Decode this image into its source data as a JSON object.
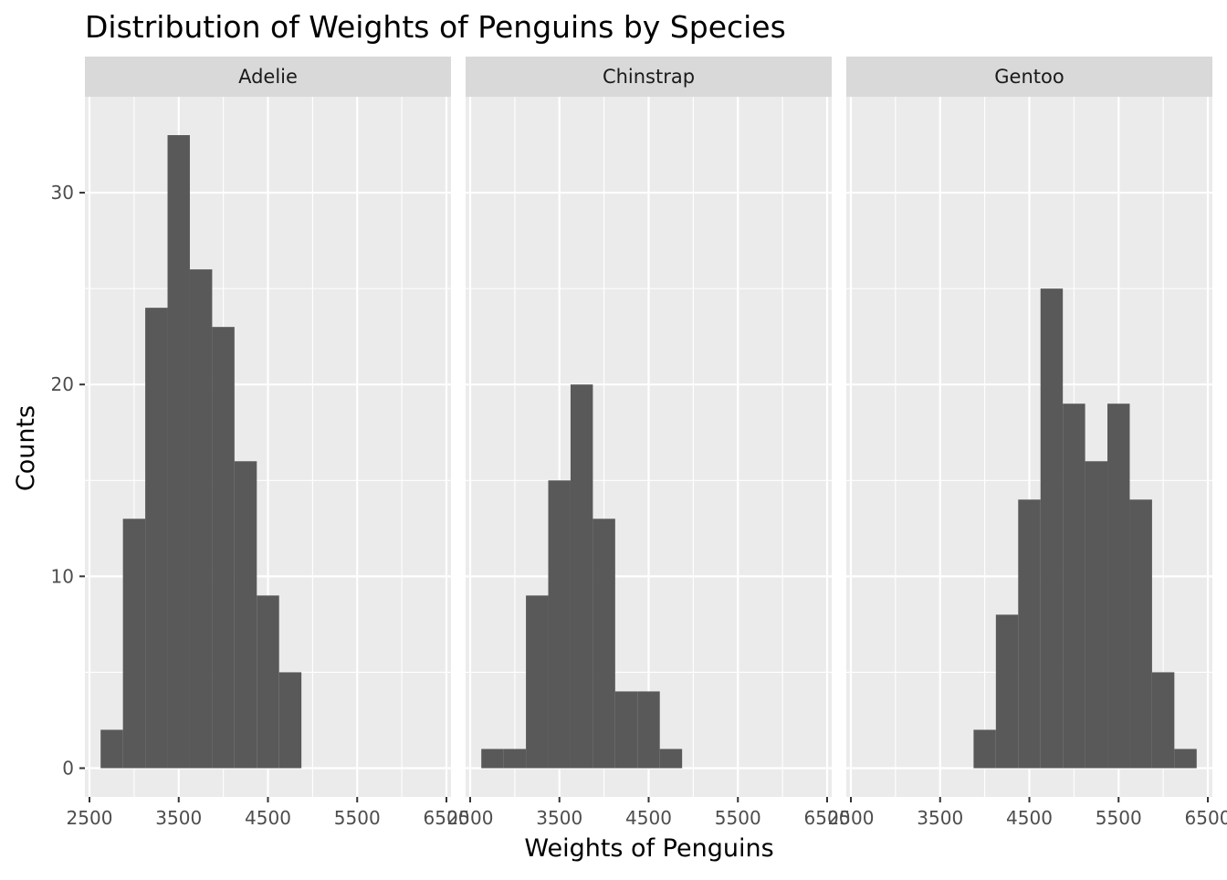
{
  "chart_data": {
    "type": "bar",
    "title": "Distribution of Weights of Penguins by Species",
    "xlabel": "Weights of Penguins",
    "ylabel": "Counts",
    "xlim": [
      2500,
      6500
    ],
    "ylim": [
      -1.5,
      35
    ],
    "x_ticks": [
      2500,
      3500,
      4500,
      5500,
      6500
    ],
    "x_tick_labels": [
      "2500",
      "3500",
      "4500",
      "5500",
      "6500"
    ],
    "y_ticks": [
      0,
      10,
      20,
      30
    ],
    "y_tick_labels": [
      "0",
      "10",
      "20",
      "30"
    ],
    "bin_width": 250,
    "grid": true,
    "colors": {
      "bar": "#595959",
      "panel_bg": "#ebebeb",
      "strip_bg": "#d9d9d9",
      "grid": "#ffffff"
    },
    "facets": [
      {
        "name": "Adelie",
        "bins": [
          {
            "x0": 2625,
            "x1": 2875,
            "count": 2
          },
          {
            "x0": 2875,
            "x1": 3125,
            "count": 13
          },
          {
            "x0": 3125,
            "x1": 3375,
            "count": 24
          },
          {
            "x0": 3375,
            "x1": 3625,
            "count": 33
          },
          {
            "x0": 3625,
            "x1": 3875,
            "count": 26
          },
          {
            "x0": 3875,
            "x1": 4125,
            "count": 23
          },
          {
            "x0": 4125,
            "x1": 4375,
            "count": 16
          },
          {
            "x0": 4375,
            "x1": 4625,
            "count": 9
          },
          {
            "x0": 4625,
            "x1": 4875,
            "count": 5
          }
        ]
      },
      {
        "name": "Chinstrap",
        "bins": [
          {
            "x0": 2625,
            "x1": 2875,
            "count": 1
          },
          {
            "x0": 2875,
            "x1": 3125,
            "count": 1
          },
          {
            "x0": 3125,
            "x1": 3375,
            "count": 9
          },
          {
            "x0": 3375,
            "x1": 3625,
            "count": 15
          },
          {
            "x0": 3625,
            "x1": 3875,
            "count": 20
          },
          {
            "x0": 3875,
            "x1": 4125,
            "count": 13
          },
          {
            "x0": 4125,
            "x1": 4375,
            "count": 4
          },
          {
            "x0": 4375,
            "x1": 4625,
            "count": 4
          },
          {
            "x0": 4625,
            "x1": 4875,
            "count": 1
          }
        ]
      },
      {
        "name": "Gentoo",
        "bins": [
          {
            "x0": 3875,
            "x1": 4125,
            "count": 2
          },
          {
            "x0": 4125,
            "x1": 4375,
            "count": 8
          },
          {
            "x0": 4375,
            "x1": 4625,
            "count": 14
          },
          {
            "x0": 4625,
            "x1": 4875,
            "count": 25
          },
          {
            "x0": 4875,
            "x1": 5125,
            "count": 19
          },
          {
            "x0": 5125,
            "x1": 5375,
            "count": 16
          },
          {
            "x0": 5375,
            "x1": 5625,
            "count": 19
          },
          {
            "x0": 5625,
            "x1": 5875,
            "count": 14
          },
          {
            "x0": 5875,
            "x1": 6125,
            "count": 5
          },
          {
            "x0": 6125,
            "x1": 6375,
            "count": 1
          }
        ]
      }
    ]
  }
}
